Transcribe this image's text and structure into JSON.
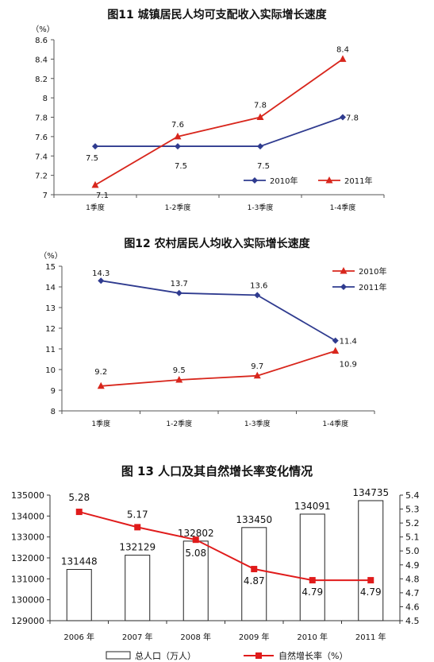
{
  "chart_data": [
    {
      "type": "line",
      "title": "图11  城镇居民人均可支配收入实际增长速度",
      "ylabel": "（%）",
      "categories": [
        "1季度",
        "1-2季度",
        "1-3季度",
        "1-4季度"
      ],
      "ylim": [
        7,
        8.6
      ],
      "yticks": [
        "7",
        "7.2",
        "7.4",
        "7.6",
        "7.8",
        "8",
        "8.2",
        "8.4",
        "8.6"
      ],
      "series": [
        {
          "name": "2010年",
          "values": [
            7.5,
            7.5,
            7.5,
            7.8
          ],
          "labels": [
            "7.5",
            "7.5",
            "7.5",
            "7.8"
          ],
          "color": "#2f3b8f",
          "marker": "diamond"
        },
        {
          "name": "2011年",
          "values": [
            7.1,
            7.6,
            7.8,
            8.4
          ],
          "labels": [
            "7.1",
            "7.6",
            "7.8",
            "8.4"
          ],
          "color": "#d8261c",
          "marker": "triangle"
        }
      ],
      "legend": "bottom-right",
      "grid": false
    },
    {
      "type": "line",
      "title": "图12  农村居民人均收入实际增长速度",
      "ylabel": "（%）",
      "categories": [
        "1季度",
        "1-2季度",
        "1-3季度",
        "1-4季度"
      ],
      "ylim": [
        8,
        15
      ],
      "yticks": [
        "8",
        "9",
        "10",
        "11",
        "12",
        "13",
        "14",
        "15"
      ],
      "series": [
        {
          "name": "2010年",
          "values": [
            9.2,
            9.5,
            9.7,
            10.9
          ],
          "labels": [
            "9.2",
            "9.5",
            "9.7",
            "10.9"
          ],
          "color": "#d8261c",
          "marker": "triangle"
        },
        {
          "name": "2011年",
          "values": [
            14.3,
            13.7,
            13.6,
            11.4
          ],
          "labels": [
            "14.3",
            "13.7",
            "13.6",
            "11.4"
          ],
          "color": "#2f3b8f",
          "marker": "diamond"
        }
      ],
      "legend": "top-right",
      "grid": false
    },
    {
      "type": "bar",
      "title": "图 13   人口及其自然增长率变化情况",
      "categories": [
        "2006 年",
        "2007 年",
        "2008 年",
        "2009 年",
        "2010 年",
        "2011 年"
      ],
      "ylim": [
        129000,
        135000
      ],
      "yticks": [
        "129000",
        "130000",
        "131000",
        "132000",
        "133000",
        "134000",
        "135000"
      ],
      "y2lim": [
        4.5,
        5.4
      ],
      "y2ticks": [
        "4.5",
        "4.6",
        "4.7",
        "4.8",
        "4.9",
        "5.0",
        "5.1",
        "5.2",
        "5.3",
        "5.4"
      ],
      "bars": {
        "name": "总人口（万人）",
        "values": [
          131448,
          132129,
          132802,
          133450,
          134091,
          134735
        ],
        "labels": [
          "131448",
          "132129",
          "132802",
          "133450",
          "134091",
          "134735"
        ]
      },
      "line": {
        "name": "自然增长率（%）",
        "values": [
          5.28,
          5.17,
          5.08,
          4.87,
          4.79,
          4.79
        ],
        "labels": [
          "5.28",
          "5.17",
          "5.08",
          "4.87",
          "4.79",
          "4.79"
        ],
        "color": "#e01b1b"
      },
      "legend": "bottom",
      "grid": false
    }
  ]
}
